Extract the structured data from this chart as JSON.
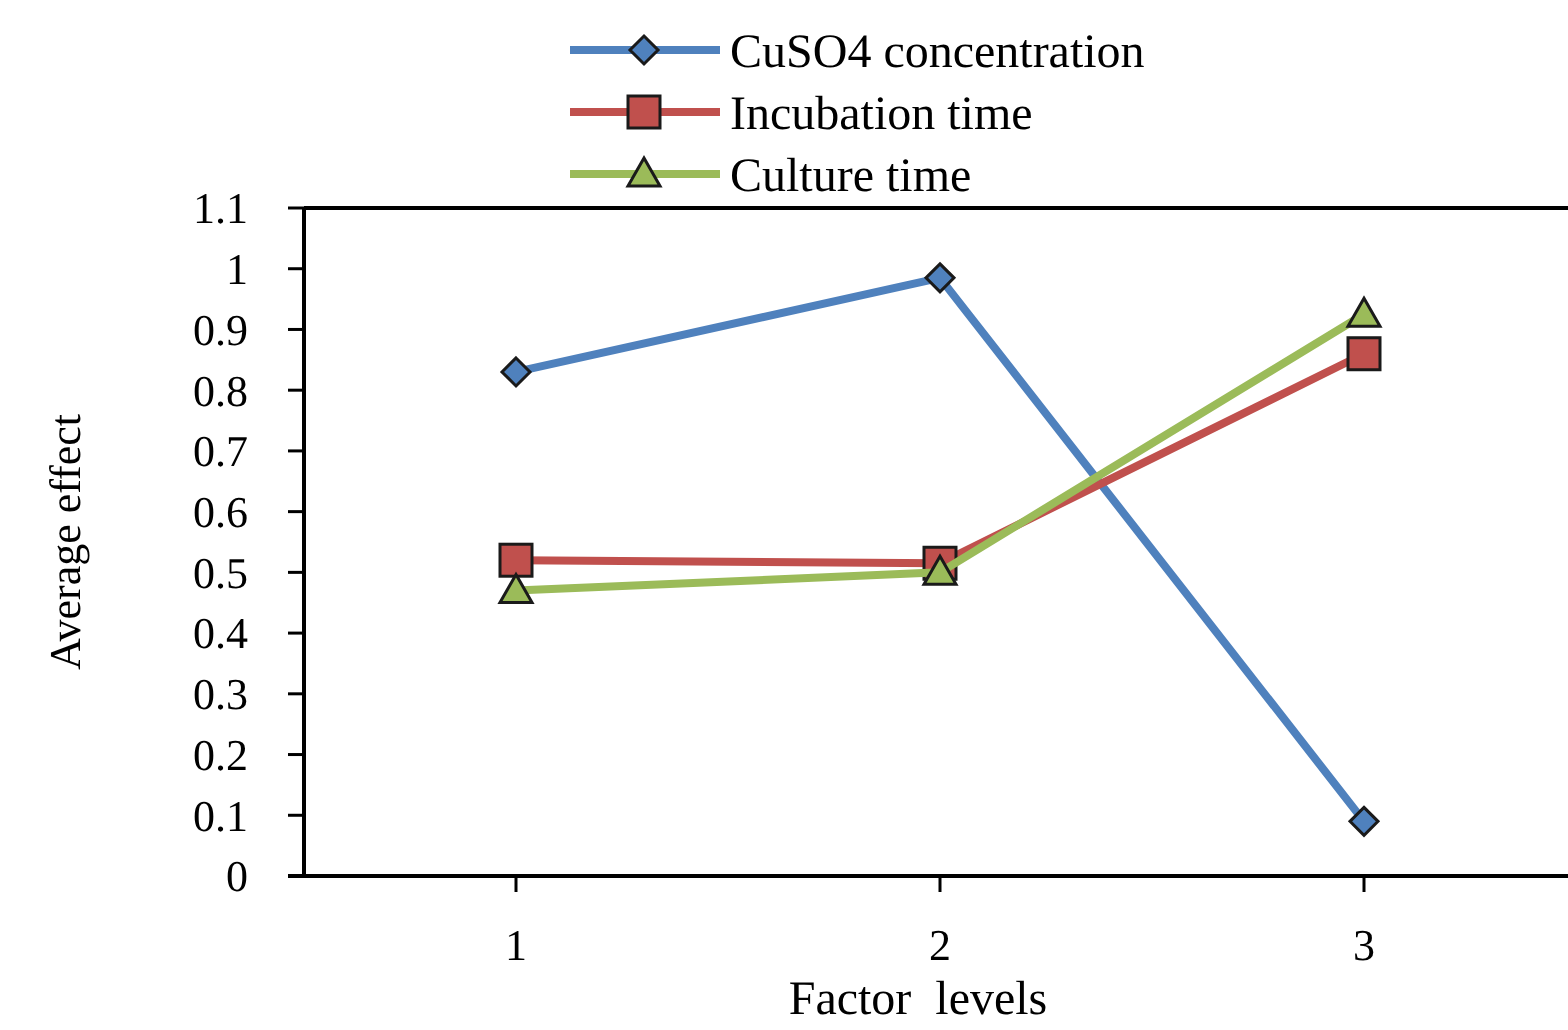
{
  "chart_data": {
    "type": "line",
    "xlabel": "Factor  levels",
    "ylabel": "Average effect",
    "categories": [
      "1",
      "2",
      "3"
    ],
    "ylim": [
      0,
      1.1
    ],
    "yticks": [
      0,
      0.1,
      0.2,
      0.3,
      0.4,
      0.5,
      0.6,
      0.7,
      0.8,
      0.9,
      1,
      1.1
    ],
    "grid": false,
    "legend": "top",
    "line_style": "solid",
    "series": [
      {
        "name": "CuSO4 concentration",
        "color": "#4f81bd",
        "marker": "diamond",
        "values": [
          0.83,
          0.985,
          0.09
        ]
      },
      {
        "name": "Incubation time",
        "color": "#c0504d",
        "marker": "square",
        "values": [
          0.52,
          0.515,
          0.86
        ]
      },
      {
        "name": "Culture time",
        "color": "#9bbb59",
        "marker": "triangle",
        "values": [
          0.47,
          0.5,
          0.925
        ]
      }
    ]
  }
}
